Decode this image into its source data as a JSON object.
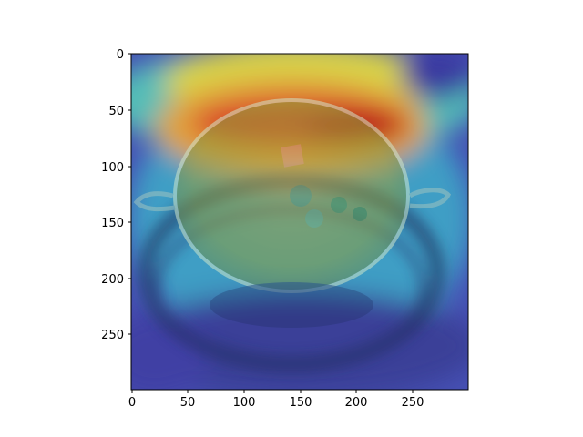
{
  "image": {
    "description": "Grad-CAM style heatmap overlay on a photo of a bowl of soup on a plate",
    "colormap": "jet",
    "axis_color": "#000000"
  },
  "x_axis": {
    "ticks": [
      "0",
      "50",
      "100",
      "150",
      "200",
      "250"
    ]
  },
  "y_axis": {
    "ticks": [
      "0",
      "50",
      "100",
      "150",
      "200",
      "250"
    ]
  }
}
